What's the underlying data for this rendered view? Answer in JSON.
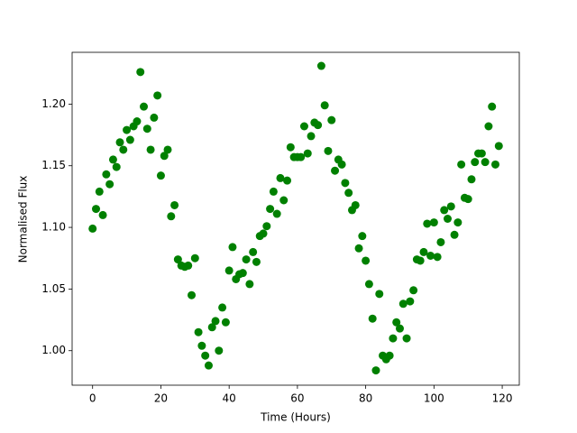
{
  "chart_data": {
    "type": "scatter",
    "xlabel": "Time (Hours)",
    "ylabel": "Normalised Flux",
    "color": "#008000",
    "x": [
      0,
      1,
      2,
      3,
      4,
      5,
      6,
      7,
      8,
      9,
      10,
      11,
      12,
      13,
      14,
      15,
      16,
      17,
      18,
      19,
      20,
      21,
      22,
      23,
      24,
      25,
      26,
      27,
      28,
      29,
      30,
      31,
      32,
      33,
      34,
      35,
      36,
      37,
      38,
      39,
      40,
      41,
      42,
      43,
      44,
      45,
      46,
      47,
      48,
      49,
      50,
      51,
      52,
      53,
      54,
      55,
      56,
      57,
      58,
      59,
      60,
      61,
      62,
      63,
      64,
      65,
      66,
      67,
      68,
      69,
      70,
      71,
      72,
      73,
      74,
      75,
      76,
      77,
      78,
      79,
      80,
      81,
      82,
      83,
      84,
      85,
      86,
      87,
      88,
      89,
      90,
      91,
      92,
      93,
      94,
      95,
      96,
      97,
      98,
      99,
      100,
      101,
      102,
      103,
      104,
      105,
      106,
      107,
      108,
      109,
      110,
      111,
      112,
      113,
      114,
      115,
      116,
      117,
      118,
      119
    ],
    "values": [
      1.099,
      1.115,
      1.129,
      1.11,
      1.143,
      1.135,
      1.155,
      1.149,
      1.169,
      1.163,
      1.179,
      1.171,
      1.182,
      1.186,
      1.226,
      1.198,
      1.18,
      1.163,
      1.189,
      1.207,
      1.142,
      1.158,
      1.163,
      1.109,
      1.118,
      1.074,
      1.069,
      1.068,
      1.069,
      1.045,
      1.075,
      1.015,
      1.004,
      0.996,
      0.988,
      1.019,
      1.024,
      1.0,
      1.035,
      1.023,
      1.065,
      1.084,
      1.058,
      1.062,
      1.063,
      1.074,
      1.054,
      1.08,
      1.072,
      1.093,
      1.095,
      1.101,
      1.115,
      1.129,
      1.111,
      1.14,
      1.122,
      1.138,
      1.165,
      1.157,
      1.157,
      1.157,
      1.182,
      1.16,
      1.174,
      1.185,
      1.183,
      1.231,
      1.199,
      1.162,
      1.187,
      1.146,
      1.155,
      1.151,
      1.136,
      1.128,
      1.114,
      1.118,
      1.083,
      1.093,
      1.073,
      1.054,
      1.026,
      0.984,
      1.046,
      0.996,
      0.993,
      0.996,
      1.01,
      1.023,
      1.018,
      1.038,
      1.01,
      1.04,
      1.049,
      1.074,
      1.073,
      1.08,
      1.103,
      1.077,
      1.104,
      1.076,
      1.088,
      1.114,
      1.107,
      1.117,
      1.094,
      1.104,
      1.151,
      1.124,
      1.123,
      1.139,
      1.153,
      1.16,
      1.16,
      1.153,
      1.182,
      1.198,
      1.151,
      1.166
    ],
    "xlim": [
      -6,
      125
    ],
    "ylim": [
      0.972,
      1.242
    ],
    "xticks": [
      0,
      20,
      40,
      60,
      80,
      100,
      120
    ],
    "yticks": [
      {
        "value": 1.0,
        "label": "1.00"
      },
      {
        "value": 1.05,
        "label": "1.05"
      },
      {
        "value": 1.1,
        "label": "1.10"
      },
      {
        "value": 1.15,
        "label": "1.15"
      },
      {
        "value": 1.2,
        "label": "1.20"
      }
    ]
  }
}
